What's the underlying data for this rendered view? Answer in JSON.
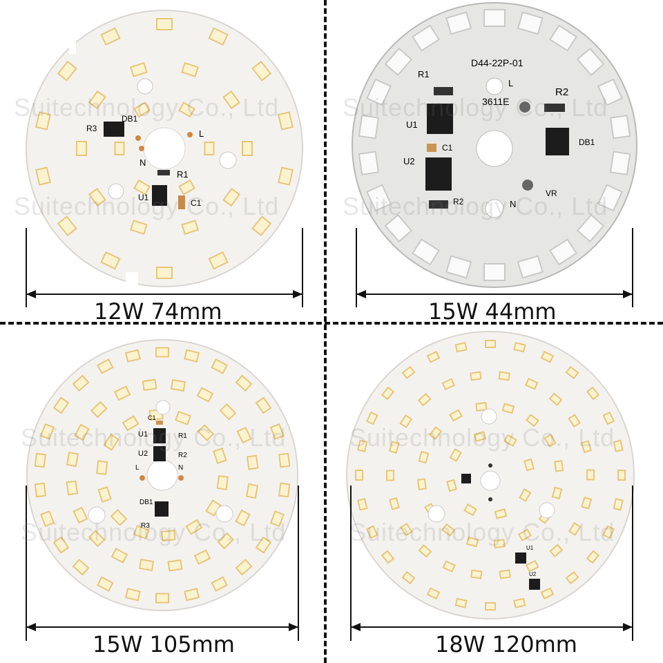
{
  "panels": [
    {
      "label": "12W 74mm"
    },
    {
      "label": "15W 44mm"
    },
    {
      "label": "15W 105mm"
    },
    {
      "label": "18W 120mm"
    }
  ],
  "watermark": "Suitechnology Co., Ltd",
  "silkscreen": {
    "p1": {
      "u1": "U1",
      "r1": "R1",
      "r3": "R3",
      "c1": "C1",
      "db": "DB1",
      "l": "L",
      "n": "N"
    },
    "p2": {
      "model": "D44-22P-01",
      "code": "3611E",
      "r1": "R1",
      "r2": "R2",
      "u1": "U1",
      "u2": "U2",
      "c1": "C1",
      "db": "DB1",
      "l": "L",
      "n": "N",
      "vr": "VR",
      "r2b": "R2"
    },
    "p3": {
      "u1": "U1",
      "u2": "U2",
      "r1": "R1",
      "r2": "R2",
      "r3": "R3",
      "c1": "C1",
      "db": "DB1",
      "l": "L",
      "n": "N"
    },
    "p4": {
      "u1": "U1",
      "u2": "U2"
    }
  },
  "colors": {
    "board": "#f4f2ef",
    "led_frame": "#e7c57a",
    "led_phosphor": "#fbf3cf",
    "chip": "#1c1c1c",
    "divider": "#111111"
  }
}
